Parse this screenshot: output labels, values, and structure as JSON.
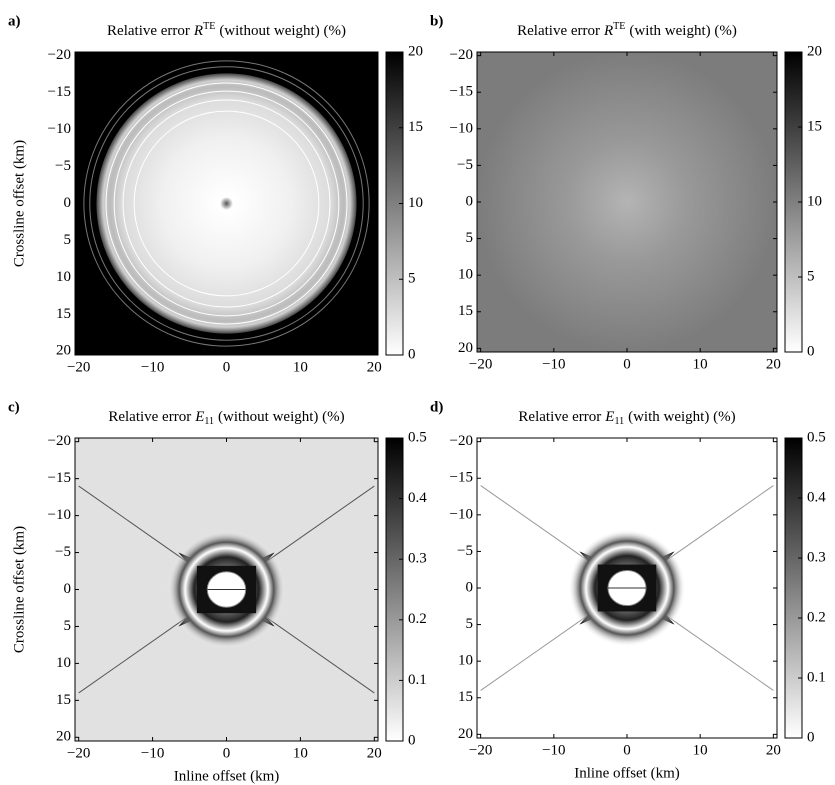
{
  "chart_data": [
    {
      "type": "heatmap",
      "label": "a)",
      "title": {
        "text": "Relative error",
        "symbol": "R",
        "script": "TE",
        "rest": "(without weight) (%)"
      },
      "ylabel": "Crossline offset (km)",
      "xlim": [
        -20.5,
        20.5
      ],
      "ylim": [
        -20.5,
        20.5
      ],
      "y_reversed": true,
      "xticks": [
        {
          "value": -20,
          "label": "−20"
        },
        {
          "value": -10,
          "label": "−10"
        },
        0,
        10,
        20
      ],
      "yticks": [
        {
          "value": -20,
          "label": "−20"
        },
        {
          "value": -15,
          "label": "−15"
        },
        {
          "value": -10,
          "label": "−10"
        },
        {
          "value": -5,
          "label": "−5"
        },
        0,
        5,
        10,
        15,
        20
      ],
      "colorbar": {
        "lim": [
          0,
          20
        ],
        "ticks": [
          0,
          5,
          10,
          15,
          20
        ]
      },
      "colormap": [
        "#ffffff",
        "#000000"
      ]
    },
    {
      "type": "heatmap",
      "label": "b)",
      "title": {
        "text": "Relative error",
        "symbol": "R",
        "script": "TE",
        "rest": "(with weight) (%)"
      },
      "xlim": [
        -20.5,
        20.5
      ],
      "ylim": [
        -20.5,
        20.5
      ],
      "y_reversed": true,
      "xticks": [
        {
          "value": -20,
          "label": "−20"
        },
        {
          "value": -10,
          "label": "−10"
        },
        0,
        10,
        20
      ],
      "yticks": [
        {
          "value": -20,
          "label": "−20"
        },
        {
          "value": -15,
          "label": "−15"
        },
        {
          "value": -10,
          "label": "−10"
        },
        {
          "value": -5,
          "label": "−5"
        },
        0,
        5,
        10,
        15,
        20
      ],
      "colorbar": {
        "lim": [
          0,
          20
        ],
        "ticks": [
          0,
          5,
          10,
          15,
          20
        ]
      },
      "colormap": [
        "#ffffff",
        "#000000"
      ]
    },
    {
      "type": "heatmap",
      "label": "c)",
      "title": {
        "text": "Relative error",
        "symbol": "E",
        "script": "11",
        "rest": "(without weight) (%)"
      },
      "xlabel": "Inline offset (km)",
      "ylabel": "Crossline offset (km)",
      "xlim": [
        -20.5,
        20.5
      ],
      "ylim": [
        -20.5,
        20.5
      ],
      "y_reversed": true,
      "xticks": [
        {
          "value": -20,
          "label": "−20"
        },
        {
          "value": -10,
          "label": "−10"
        },
        0,
        10,
        20
      ],
      "yticks": [
        {
          "value": -20,
          "label": "−20"
        },
        {
          "value": -15,
          "label": "−15"
        },
        {
          "value": -10,
          "label": "−10"
        },
        {
          "value": -5,
          "label": "−5"
        },
        0,
        5,
        10,
        15,
        20
      ],
      "colorbar": {
        "lim": [
          0,
          0.5
        ],
        "ticks": [
          0,
          0.1,
          0.2,
          0.3,
          0.4,
          0.5
        ]
      },
      "colormap": [
        "#ffffff",
        "#000000"
      ]
    },
    {
      "type": "heatmap",
      "label": "d)",
      "title": {
        "text": "Relative error",
        "symbol": "E",
        "script": "11",
        "rest": "(with weight) (%)"
      },
      "xlabel": "Inline offset (km)",
      "xlim": [
        -20.5,
        20.5
      ],
      "ylim": [
        -20.5,
        20.5
      ],
      "y_reversed": true,
      "xticks": [
        {
          "value": -20,
          "label": "−20"
        },
        {
          "value": -10,
          "label": "−10"
        },
        0,
        10,
        20
      ],
      "yticks": [
        {
          "value": -20,
          "label": "−20"
        },
        {
          "value": -15,
          "label": "−15"
        },
        {
          "value": -10,
          "label": "−10"
        },
        {
          "value": -5,
          "label": "−5"
        },
        0,
        5,
        10,
        15,
        20
      ],
      "colorbar": {
        "lim": [
          0,
          0.5
        ],
        "ticks": [
          0,
          0.1,
          0.2,
          0.3,
          0.4,
          0.5
        ]
      },
      "colormap": [
        "#ffffff",
        "#000000"
      ]
    }
  ]
}
